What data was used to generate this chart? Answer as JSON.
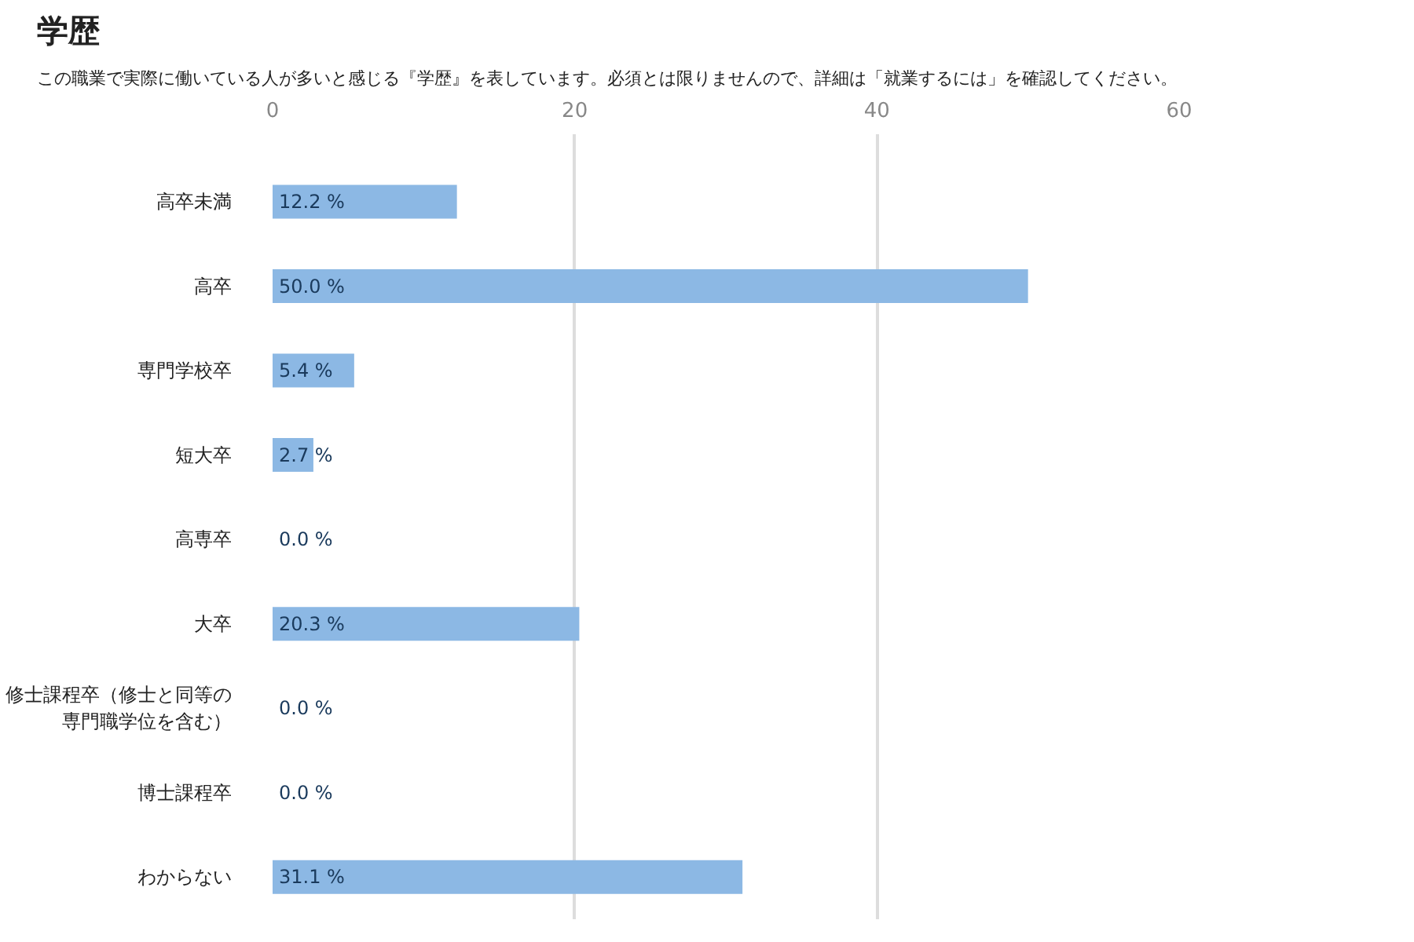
{
  "chart_data": {
    "type": "bar",
    "orientation": "horizontal",
    "title": "学歴",
    "subtitle": "この職業で実際に働いている人が多いと感じる『学歴』を表しています。必須とは限りませんので、詳細は「就業するには」を確認してください。",
    "categories": [
      "高卒未満",
      "高卒",
      "専門学校卒",
      "短大卒",
      "高専卒",
      "大卒",
      "修士課程卒（修士と同等の専門職学位を含む）",
      "博士課程卒",
      "わからない"
    ],
    "values": [
      12.2,
      50.0,
      5.4,
      2.7,
      0.0,
      20.3,
      0.0,
      0.0,
      31.1
    ],
    "value_labels": [
      "12.2 %",
      "50.0 %",
      "5.4 %",
      "2.7 %",
      "0.0 %",
      "20.3 %",
      "0.0 %",
      "0.0 %",
      "31.1 %"
    ],
    "color": "#8cb8e4",
    "xlim": [
      0,
      60
    ],
    "xticks": [
      0,
      20,
      40,
      60
    ],
    "grid": "x"
  }
}
